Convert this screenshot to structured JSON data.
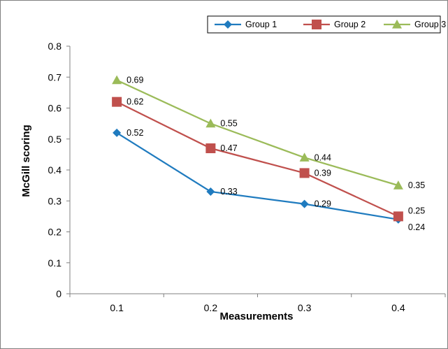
{
  "chart_data": {
    "type": "line",
    "title": "",
    "xlabel": "Measurements",
    "ylabel": "McGill scoring",
    "categories": [
      "0.1",
      "0.2",
      "0.3",
      "0.4"
    ],
    "ylim": [
      0,
      0.8
    ],
    "yticks": [
      "0",
      "0.1",
      "0.2",
      "0.3",
      "0.4",
      "0.5",
      "0.6",
      "0.7",
      "0.8"
    ],
    "grid": false,
    "legend_position": "top-right",
    "series": [
      {
        "name": "Group 1",
        "values": [
          0.52,
          0.33,
          0.29,
          0.24
        ],
        "labels": [
          "0.52",
          "0.33",
          "0.29",
          "0.24"
        ],
        "color": "#1f7bbf",
        "marker": "diamond"
      },
      {
        "name": "Group 2",
        "values": [
          0.62,
          0.47,
          0.39,
          0.25
        ],
        "labels": [
          "0.62",
          "0.47",
          "0.39",
          "0.25"
        ],
        "color": "#c0504d",
        "marker": "square"
      },
      {
        "name": "Group 3",
        "values": [
          0.69,
          0.55,
          0.44,
          0.35
        ],
        "labels": [
          "0.69",
          "0.55",
          "0.44",
          "0.35"
        ],
        "color": "#9bbb59",
        "marker": "triangle"
      }
    ]
  }
}
